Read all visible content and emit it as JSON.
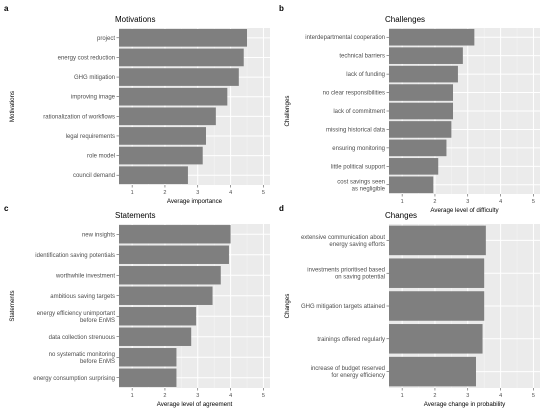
{
  "chart_data": [
    {
      "panel": "a",
      "type": "bar",
      "orientation": "horizontal",
      "title": "Motivations",
      "xlabel": "Average importance",
      "ylabel": "Motivations",
      "xlim": [
        0.6,
        5.2
      ],
      "xticks": [
        1,
        2,
        3,
        4,
        5
      ],
      "grid": true,
      "bar_color": "#7f7f7f",
      "panel_background": "#ebebeb",
      "categories": [
        "project",
        "energy cost reduction",
        "GHG mitigation",
        "improving image",
        "rationalization of workflows",
        "legal requirements",
        "role model",
        "council demand"
      ],
      "values": [
        4.5,
        4.4,
        4.25,
        3.9,
        3.55,
        3.25,
        3.15,
        2.7
      ]
    },
    {
      "panel": "b",
      "type": "bar",
      "orientation": "horizontal",
      "title": "Challenges",
      "xlabel": "Average level of difficulty",
      "ylabel": "Challenges",
      "xlim": [
        0.6,
        5.2
      ],
      "xticks": [
        1,
        2,
        3,
        4,
        5
      ],
      "grid": true,
      "bar_color": "#7f7f7f",
      "panel_background": "#ebebeb",
      "categories": [
        "interdepartmental cooperation",
        "technical barriers",
        "lack of funding",
        "no clear responsibilities",
        "lack of commitment",
        "missing historical data",
        "ensuring monitoring",
        "little political support",
        "cost savings seen\nas negligible"
      ],
      "values": [
        3.2,
        2.85,
        2.7,
        2.55,
        2.55,
        2.5,
        2.35,
        2.1,
        1.95
      ]
    },
    {
      "panel": "c",
      "type": "bar",
      "orientation": "horizontal",
      "title": "Statements",
      "xlabel": "Average level of agreement",
      "ylabel": "Statements",
      "xlim": [
        0.6,
        5.2
      ],
      "xticks": [
        1,
        2,
        3,
        4,
        5
      ],
      "grid": true,
      "bar_color": "#7f7f7f",
      "panel_background": "#ebebeb",
      "categories": [
        "new insights",
        "identification saving potentials",
        "worthwhile investment",
        "ambitious saving targets",
        "energy efficiency unimportant\nbefore EnMS",
        "data collection strenuous",
        "no systematic monitoring\nbefore EnMS",
        "energy consumption surprising"
      ],
      "values": [
        4.0,
        3.95,
        3.7,
        3.45,
        2.95,
        2.8,
        2.35,
        2.35
      ]
    },
    {
      "panel": "d",
      "type": "bar",
      "orientation": "horizontal",
      "title": "Changes",
      "xlabel": "Average change in probability",
      "ylabel": "Changes",
      "xlim": [
        0.6,
        5.2
      ],
      "xticks": [
        1,
        2,
        3,
        4,
        5
      ],
      "grid": true,
      "bar_color": "#7f7f7f",
      "panel_background": "#ebebeb",
      "categories": [
        "extensive communication about\nenergy saving efforts",
        "investments prioritised based\non saving potential",
        "GHG mitigation targets attained",
        "trainings offered regularly",
        "increase of budget reserved\nfor energy efficiency"
      ],
      "values": [
        3.55,
        3.5,
        3.5,
        3.45,
        3.25
      ]
    }
  ]
}
